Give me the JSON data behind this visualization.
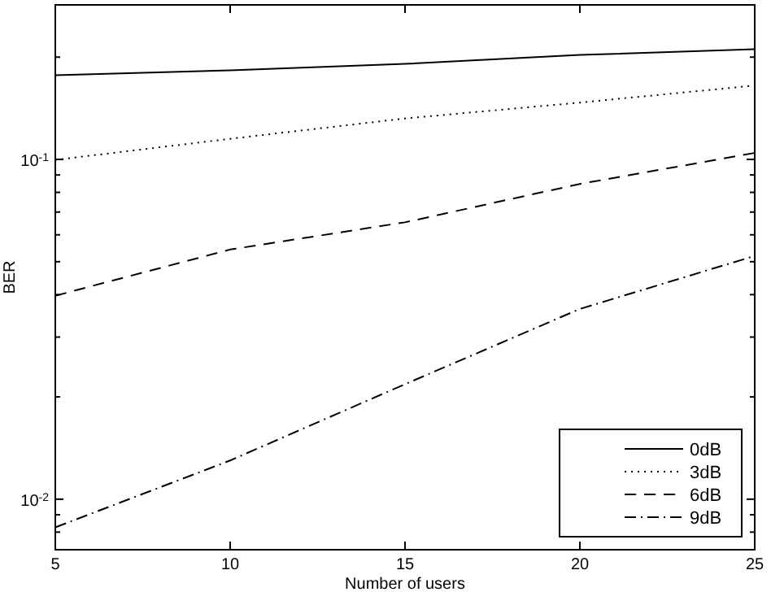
{
  "chart_data": {
    "type": "line",
    "xlabel": "Number of users",
    "ylabel": "BER",
    "log": "y",
    "grid": false,
    "legend": "bottom right",
    "xlim": [
      5,
      25
    ],
    "xticks": [
      5,
      10,
      15,
      20,
      25
    ],
    "ylim": [
      0.0071,
      0.285
    ],
    "yticks": [
      {
        "value": 0.008,
        "label": null
      },
      {
        "value": 0.009,
        "label": null
      },
      {
        "value": 0.01,
        "label": "10$^{-2}$"
      },
      {
        "value": 0.02,
        "label": null
      },
      {
        "value": 0.03,
        "label": null
      },
      {
        "value": 0.04,
        "label": null
      },
      {
        "value": 0.05,
        "label": null
      },
      {
        "value": 0.06,
        "label": null
      },
      {
        "value": 0.07,
        "label": null
      },
      {
        "value": 0.08,
        "label": null
      },
      {
        "value": 0.09,
        "label": null
      },
      {
        "value": 0.1,
        "label": "10$^{-1}$"
      },
      {
        "value": 0.2,
        "label": null
      }
    ],
    "x": [
      5,
      10,
      15,
      20,
      25
    ],
    "series": [
      {
        "name": "0dB",
        "color": "#000000",
        "line_style": "solid",
        "values": [
          0.177,
          0.183,
          0.191,
          0.203,
          0.211
        ]
      },
      {
        "name": "3dB",
        "color": "#000000",
        "line_style": "dotted",
        "values": [
          0.0997,
          0.115,
          0.132,
          0.147,
          0.165
        ]
      },
      {
        "name": "6dB",
        "color": "#000000",
        "line_style": "dashed",
        "values": [
          0.0397,
          0.0543,
          0.0653,
          0.0847,
          0.1045
        ]
      },
      {
        "name": "9dB",
        "color": "#000000",
        "line_style": "dashdot",
        "values": [
          0.00826,
          0.013,
          0.0218,
          0.0363,
          0.052
        ]
      }
    ]
  }
}
